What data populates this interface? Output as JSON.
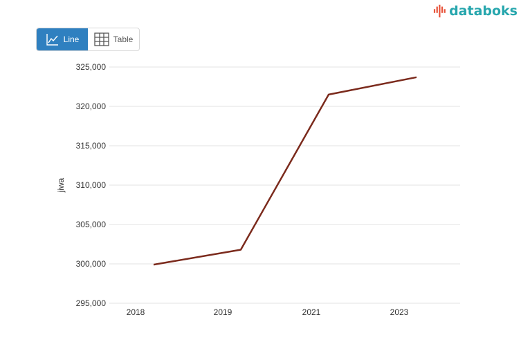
{
  "brand": {
    "name": "databoks",
    "color": "#26a6ad",
    "icon": "databoks-logo-icon"
  },
  "view_toggle": {
    "line_label": "Line",
    "table_label": "Table",
    "active": "line",
    "line_icon": "line-chart-icon",
    "table_icon": "table-grid-icon",
    "active_color": "#2f80c0"
  },
  "chart_data": {
    "type": "line",
    "title": "",
    "xlabel": "",
    "ylabel": "jiwa",
    "categories": [
      "2018",
      "2019",
      "2021",
      "2023"
    ],
    "x_ticks": [
      "2018",
      "2019",
      "2021",
      "2023"
    ],
    "series": [
      {
        "color": "#7b2a1c",
        "values": [
          299900,
          301800,
          321500,
          323700
        ]
      }
    ],
    "ylim": [
      295000,
      325000
    ],
    "y_ticks": [
      295000,
      300000,
      305000,
      310000,
      315000,
      320000,
      325000
    ],
    "y_tick_labels": [
      "295,000",
      "300,000",
      "305,000",
      "310,000",
      "315,000",
      "320,000",
      "325,000"
    ],
    "grid": true,
    "legend": "none"
  }
}
